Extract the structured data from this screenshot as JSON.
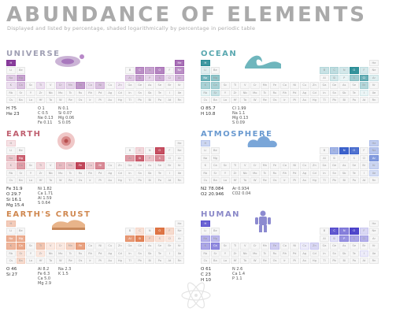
{
  "title": "ABUNDANCE OF ELEMENTS",
  "subtitle": "Displayed and listed by percentage, shaded logarithmically by percentage in periodic table",
  "panels": [
    {
      "id": "universe",
      "title": "UNIVERSE",
      "title_color": "#a0a0b4",
      "scheme": "purple",
      "highlights": {
        "H": 0.95,
        "He": 0.7,
        "O": 0.6,
        "C": 0.55,
        "Ne": 0.55,
        "Fe": 0.5,
        "N": 0.45,
        "Si": 0.45,
        "Mg": 0.45,
        "S": 0.4,
        "Ar": 0.35,
        "Ca": 0.3,
        "Ni": 0.3,
        "Na": 0.25,
        "Al": 0.25,
        "Cr": 0.2,
        "Mn": 0.2,
        "P": 0.2,
        "Co": 0.15,
        "Cl": 0.15,
        "K": 0.15,
        "Ti": 0.15,
        "Zn": 0.1
      },
      "main_values": [
        {
          "sym": "H",
          "val": "75"
        },
        {
          "sym": "He",
          "val": "23"
        }
      ],
      "sub_values": [
        {
          "sym": "O",
          "val": "1"
        },
        {
          "sym": "C",
          "val": "0.5"
        },
        {
          "sym": "Ne",
          "val": "0.13"
        },
        {
          "sym": "Fe",
          "val": "0.11"
        },
        {
          "sym": "N",
          "val": "0.1"
        },
        {
          "sym": "Si",
          "val": "0.07"
        },
        {
          "sym": "Mg",
          "val": "0.06"
        },
        {
          "sym": "S",
          "val": "0.05"
        }
      ]
    },
    {
      "id": "ocean",
      "title": "OCEAN",
      "title_color": "#5aa8b0",
      "scheme": "teal",
      "highlights": {
        "O": 0.95,
        "H": 0.9,
        "Cl": 0.7,
        "Na": 0.65,
        "Mg": 0.5,
        "S": 0.45,
        "Ca": 0.4,
        "K": 0.4,
        "Br": 0.35,
        "C": 0.3,
        "Sr": 0.25,
        "B": 0.25,
        "Si": 0.2,
        "F": 0.2,
        "N": 0.2,
        "Ar": 0.15,
        "Li": 0.15,
        "Rb": 0.1,
        "P": 0.1,
        "I": 0.1
      },
      "main_values": [
        {
          "sym": "O",
          "val": "85.7"
        },
        {
          "sym": "H",
          "val": "10.8"
        }
      ],
      "sub_values": [
        {
          "sym": "Cl",
          "val": "1.99"
        },
        {
          "sym": "Na",
          "val": "1.1"
        },
        {
          "sym": "Mg",
          "val": "0.13"
        },
        {
          "sym": "S",
          "val": "0.09"
        }
      ]
    },
    {
      "id": "earth",
      "title": "EARTH",
      "title_color": "#c06070",
      "scheme": "red",
      "highlights": {
        "Fe": 0.95,
        "O": 0.9,
        "Si": 0.8,
        "Mg": 0.8,
        "S": 0.6,
        "Ni": 0.6,
        "Ca": 0.5,
        "Al": 0.5,
        "Cr": 0.35,
        "Na": 0.3,
        "Mn": 0.3,
        "P": 0.3,
        "Co": 0.25,
        "Ti": 0.2,
        "K": 0.2,
        "C": 0.2,
        "H": 0.15
      },
      "main_values": [
        {
          "sym": "Fe",
          "val": "31.9"
        },
        {
          "sym": "O",
          "val": "29.7"
        },
        {
          "sym": "Si",
          "val": "16.1"
        },
        {
          "sym": "Mg",
          "val": "15.4"
        }
      ],
      "sub_values": [
        {
          "sym": "Ni",
          "val": "1.82"
        },
        {
          "sym": "Ca",
          "val": "1.71"
        },
        {
          "sym": "Al",
          "val": "1.59"
        },
        {
          "sym": "S",
          "val": "0.64"
        }
      ]
    },
    {
      "id": "atmosphere",
      "title": "ATMOSPHERE",
      "title_color": "#6a9ad0",
      "scheme": "blue",
      "highlights": {
        "N": 0.95,
        "O": 0.85,
        "Ar": 0.6,
        "C": 0.45,
        "Ne": 0.35,
        "He": 0.3,
        "H": 0.25,
        "Kr": 0.25,
        "Xe": 0.2
      },
      "main_values": [
        {
          "sym": "N2",
          "val": "78.084"
        },
        {
          "sym": "O2",
          "val": "20.946"
        }
      ],
      "sub_values": [
        {
          "sym": "Ar",
          "val": "0.934"
        },
        {
          "sym": "CO2",
          "val": "0.04"
        }
      ]
    },
    {
      "id": "earths-crust",
      "title": "EARTH'S CRUST",
      "title_color": "#d08850",
      "scheme": "orange",
      "highlights": {
        "O": 0.95,
        "Si": 0.85,
        "Al": 0.7,
        "Fe": 0.65,
        "Ca": 0.6,
        "Na": 0.55,
        "Mg": 0.55,
        "K": 0.5,
        "Ti": 0.4,
        "H": 0.35,
        "P": 0.3,
        "Mn": 0.3,
        "F": 0.25,
        "Ba": 0.25,
        "Sr": 0.2,
        "S": 0.2,
        "C": 0.2,
        "Zr": 0.15,
        "Cl": 0.15,
        "V": 0.15,
        "Cr": 0.15
      },
      "main_values": [
        {
          "sym": "O",
          "val": "46"
        },
        {
          "sym": "Si",
          "val": "27"
        }
      ],
      "sub_values": [
        {
          "sym": "Al",
          "val": "8.2"
        },
        {
          "sym": "Fe",
          "val": "6.3"
        },
        {
          "sym": "Ca",
          "val": "5.0"
        },
        {
          "sym": "Mg",
          "val": "2.9"
        },
        {
          "sym": "Na",
          "val": "2.3"
        },
        {
          "sym": "K",
          "val": "1.5"
        }
      ]
    },
    {
      "id": "human",
      "title": "HUMAN",
      "title_color": "#8a88c8",
      "scheme": "indigo",
      "highlights": {
        "O": 0.95,
        "C": 0.85,
        "H": 0.8,
        "N": 0.65,
        "Ca": 0.6,
        "P": 0.55,
        "K": 0.45,
        "S": 0.45,
        "Na": 0.4,
        "Cl": 0.4,
        "Mg": 0.35,
        "Fe": 0.25,
        "F": 0.2,
        "Zn": 0.2,
        "Si": 0.15,
        "Cu": 0.1,
        "I": 0.1
      },
      "main_values": [
        {
          "sym": "O",
          "val": "61"
        },
        {
          "sym": "C",
          "val": "23"
        },
        {
          "sym": "H",
          "val": "10"
        }
      ],
      "sub_values": [
        {
          "sym": "N",
          "val": "2.6"
        },
        {
          "sym": "Ca",
          "val": "1.4"
        },
        {
          "sym": "P",
          "val": "1.1"
        }
      ]
    }
  ]
}
